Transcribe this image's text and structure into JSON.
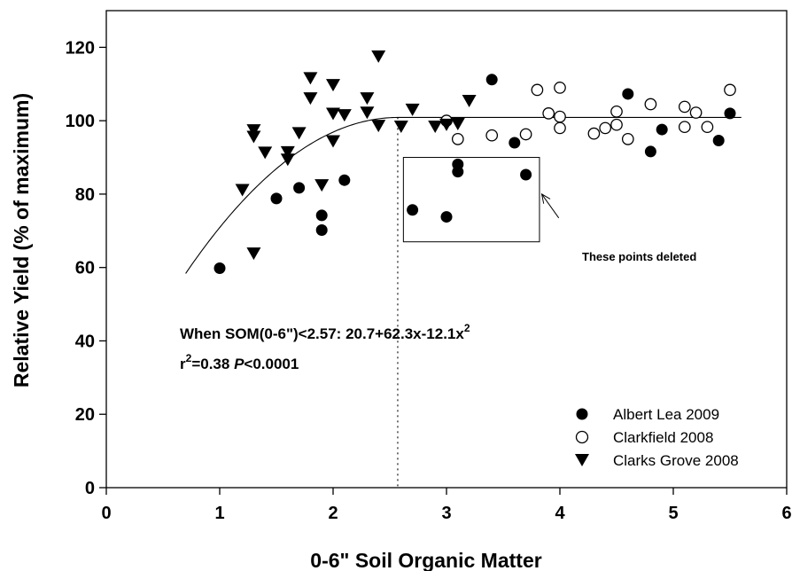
{
  "chart_data": {
    "type": "scatter",
    "title": "",
    "xlabel": "0-6\" Soil Organic Matter",
    "ylabel": "Relative Yield (% of maximum)",
    "xlim": [
      0,
      6
    ],
    "ylim": [
      0,
      130
    ],
    "x_ticks": [
      0,
      1,
      2,
      3,
      4,
      5,
      6
    ],
    "y_ticks": [
      0,
      20,
      40,
      60,
      80,
      100,
      120
    ],
    "grid": false,
    "legend_position": "bottom-right",
    "series": [
      {
        "name": "Albert Lea 2009",
        "marker": "filled-circle",
        "color": "#000000",
        "points": [
          [
            1.0,
            59.8
          ],
          [
            1.5,
            78.8
          ],
          [
            1.7,
            81.7
          ],
          [
            1.9,
            74.2
          ],
          [
            1.9,
            70.2
          ],
          [
            2.1,
            83.8
          ],
          [
            2.7,
            75.7
          ],
          [
            3.0,
            73.8
          ],
          [
            3.1,
            88.1
          ],
          [
            3.1,
            86.1
          ],
          [
            3.7,
            85.3
          ],
          [
            3.4,
            111.2
          ],
          [
            3.6,
            94.0
          ],
          [
            4.6,
            107.3
          ],
          [
            4.8,
            91.6
          ],
          [
            4.9,
            97.6
          ],
          [
            5.4,
            94.6
          ],
          [
            5.5,
            102.0
          ]
        ]
      },
      {
        "name": "Clarkfield 2008",
        "marker": "open-circle",
        "color": "#000000",
        "points": [
          [
            3.0,
            100.0
          ],
          [
            3.1,
            95.0
          ],
          [
            3.4,
            96.0
          ],
          [
            3.7,
            96.3
          ],
          [
            3.8,
            108.4
          ],
          [
            3.9,
            102.0
          ],
          [
            4.0,
            109.0
          ],
          [
            4.0,
            101.1
          ],
          [
            4.0,
            98.0
          ],
          [
            4.3,
            96.5
          ],
          [
            4.4,
            98.0
          ],
          [
            4.5,
            102.5
          ],
          [
            4.5,
            98.9
          ],
          [
            4.6,
            95.0
          ],
          [
            4.8,
            104.5
          ],
          [
            5.1,
            103.8
          ],
          [
            5.1,
            98.3
          ],
          [
            5.2,
            102.2
          ],
          [
            5.3,
            98.3
          ],
          [
            5.5,
            108.4
          ]
        ]
      },
      {
        "name": "Clarks Grove 2008",
        "marker": "filled-triangle-down",
        "color": "#000000",
        "points": [
          [
            1.2,
            81.3
          ],
          [
            1.3,
            97.6
          ],
          [
            1.3,
            95.8
          ],
          [
            1.3,
            64.0
          ],
          [
            1.4,
            91.5
          ],
          [
            1.6,
            91.6
          ],
          [
            1.6,
            89.6
          ],
          [
            1.7,
            96.8
          ],
          [
            1.8,
            111.8
          ],
          [
            1.8,
            106.3
          ],
          [
            1.9,
            82.6
          ],
          [
            2.0,
            109.9
          ],
          [
            2.0,
            102.1
          ],
          [
            2.0,
            94.6
          ],
          [
            2.1,
            101.7
          ],
          [
            2.3,
            106.3
          ],
          [
            2.3,
            102.4
          ],
          [
            2.4,
            117.7
          ],
          [
            2.4,
            98.8
          ],
          [
            2.6,
            98.6
          ],
          [
            2.7,
            103.2
          ],
          [
            2.9,
            98.6
          ],
          [
            3.0,
            99.1
          ],
          [
            3.1,
            99.3
          ],
          [
            3.2,
            105.6
          ]
        ]
      }
    ],
    "fit_line": {
      "segments": [
        {
          "kind": "quadratic",
          "coefficients": [
            20.7,
            62.3,
            -12.1
          ],
          "x_range": [
            0.7,
            2.57
          ]
        },
        {
          "kind": "plateau",
          "value": 100.9,
          "x_range": [
            2.57,
            5.6
          ]
        }
      ],
      "joint_x": 2.57
    },
    "annotations": {
      "equation_prefix": "When SOM(0-6\")<2.57:  20.7+62.3x-12.1x",
      "equation_exponent": "2",
      "r2_prefix": "r",
      "r2_exponent": "2",
      "r2_value": "=0.38  ",
      "p_label": "P",
      "p_value": "<0.0001",
      "deleted_note": "These points deleted",
      "deleted_box": {
        "x_range": [
          2.62,
          3.82
        ],
        "y_range": [
          67.0,
          90.0
        ]
      },
      "arrow_from_data": [
        3.99,
        73.5
      ],
      "arrow_to_data": [
        3.84,
        80.0
      ]
    }
  }
}
